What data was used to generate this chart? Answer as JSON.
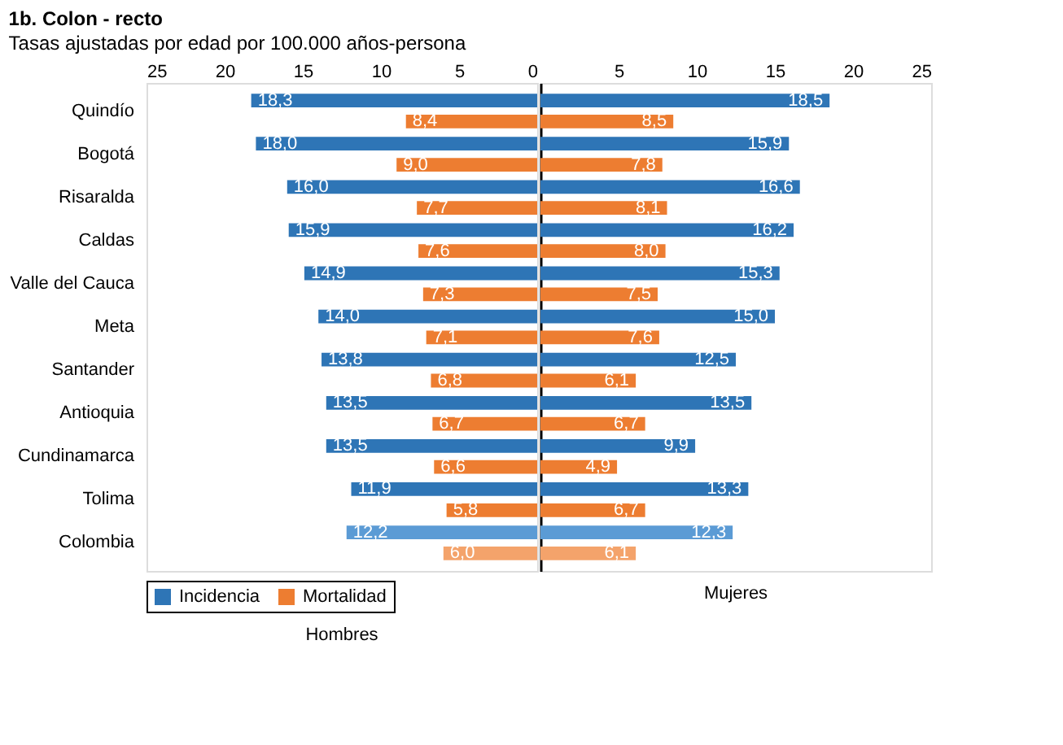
{
  "chart_data": [
    {
      "type": "bar",
      "orientation": "horizontal",
      "title": "1b. Colon - recto",
      "subtitle": "Tasas ajustadas por edad por 100.000 años-persona",
      "xlabel": "Hombres",
      "legend": "bottom",
      "xlim": [
        25,
        0
      ],
      "xticks": [
        25,
        20,
        15,
        10,
        5,
        0
      ],
      "grid": false,
      "categories": [
        "Quindío",
        "Bogotá",
        "Risaralda",
        "Caldas",
        "Valle del Cauca",
        "Meta",
        "Santander",
        "Antioquia",
        "Cundinamarca",
        "Tolima",
        "Colombia"
      ],
      "series": [
        {
          "name": "Incidencia",
          "color": "#2e75b6",
          "colors": [
            "#2e75b6",
            "#2e75b6",
            "#2e75b6",
            "#2e75b6",
            "#2e75b6",
            "#2e75b6",
            "#2e75b6",
            "#2e75b6",
            "#2e75b6",
            "#2e75b6",
            "#5b9bd5"
          ],
          "values": [
            18.3,
            18.0,
            16.0,
            15.9,
            14.9,
            14.0,
            13.8,
            13.5,
            13.5,
            11.9,
            12.2
          ],
          "value_labels": [
            "18,3",
            "18,0",
            "16,0",
            "15,9",
            "14,9",
            "14,0",
            "13,8",
            "13,5",
            "13,5",
            "11,9",
            "12,2"
          ]
        },
        {
          "name": "Mortalidad",
          "color": "#ed7d31",
          "colors": [
            "#ed7d31",
            "#ed7d31",
            "#ed7d31",
            "#ed7d31",
            "#ed7d31",
            "#ed7d31",
            "#ed7d31",
            "#ed7d31",
            "#ed7d31",
            "#ed7d31",
            "#f4a36b"
          ],
          "values": [
            8.4,
            9.0,
            7.7,
            7.6,
            7.3,
            7.1,
            6.8,
            6.7,
            6.6,
            5.8,
            6.0
          ],
          "value_labels": [
            "8,4",
            "9,0",
            "7,7",
            "7,6",
            "7,3",
            "7,1",
            "6,8",
            "6,7",
            "6,6",
            "5,8",
            "6,0"
          ]
        }
      ]
    },
    {
      "type": "bar",
      "orientation": "horizontal",
      "xlabel": "Mujeres",
      "tick_labels": "x",
      "xlim": [
        0,
        25
      ],
      "xticks": [
        5,
        10,
        15,
        20,
        25
      ],
      "grid": false,
      "series": [
        {
          "colors": [
            "#2e75b6",
            "#2e75b6",
            "#2e75b6",
            "#2e75b6",
            "#2e75b6",
            "#2e75b6",
            "#2e75b6",
            "#2e75b6",
            "#2e75b6",
            "#2e75b6",
            "#5b9bd5"
          ],
          "values": [
            18.5,
            15.9,
            16.6,
            16.2,
            15.3,
            15.0,
            12.5,
            13.5,
            9.9,
            13.3,
            12.3
          ],
          "value_labels": [
            "18,5",
            "15,9",
            "16,6",
            "16,2",
            "15,3",
            "15,0",
            "12,5",
            "13,5",
            "9,9",
            "13,3",
            "12,3"
          ]
        },
        {
          "colors": [
            "#ed7d31",
            "#ed7d31",
            "#ed7d31",
            "#ed7d31",
            "#ed7d31",
            "#ed7d31",
            "#ed7d31",
            "#ed7d31",
            "#ed7d31",
            "#ed7d31",
            "#f4a36b"
          ],
          "values": [
            8.5,
            7.8,
            8.1,
            8.0,
            7.5,
            7.6,
            6.1,
            6.7,
            4.9,
            6.7,
            6.1
          ],
          "value_labels": [
            "8,5",
            "7,8",
            "8,1",
            "8,0",
            "7,5",
            "7,6",
            "6,1",
            "6,7",
            "4,9",
            "6,7",
            "6,1"
          ]
        }
      ]
    }
  ]
}
